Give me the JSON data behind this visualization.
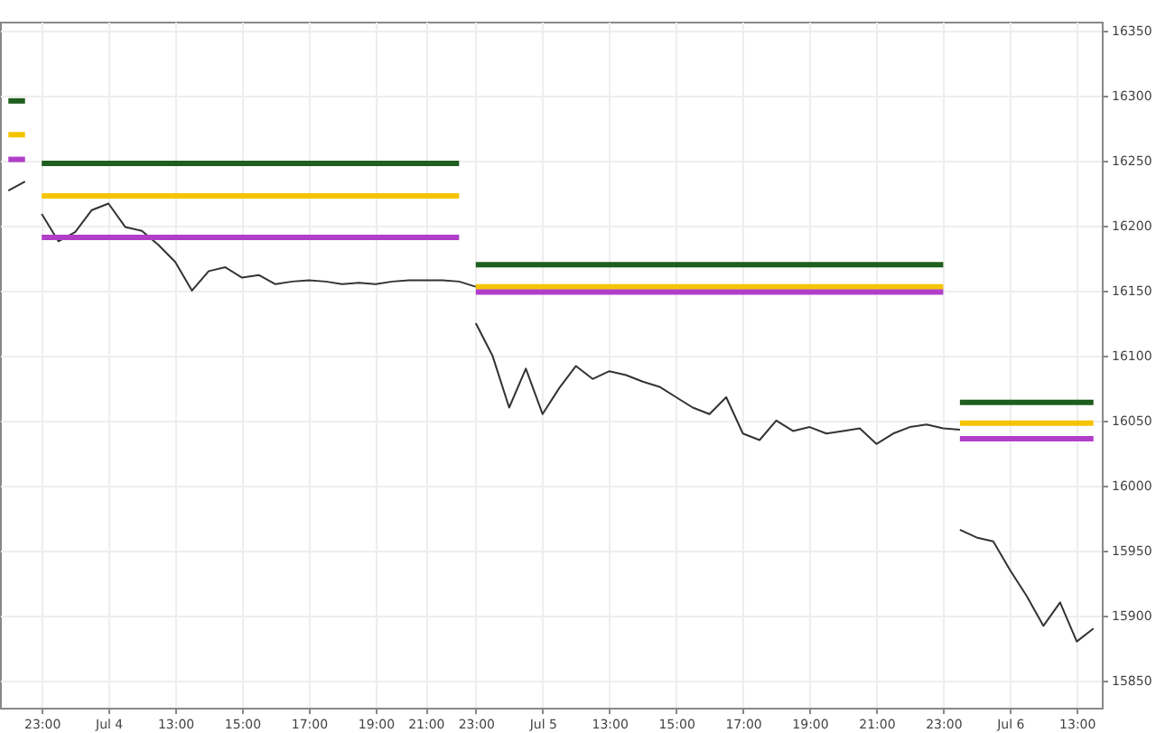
{
  "chart_data": {
    "type": "line",
    "grid": true,
    "marker": "none",
    "line_style": "solid",
    "categories": [
      null,
      null,
      "23:00",
      null,
      null,
      null,
      "Jul 4",
      null,
      null,
      null,
      "13:00",
      null,
      null,
      null,
      "15:00",
      null,
      null,
      null,
      "17:00",
      null,
      null,
      null,
      "19:00",
      null,
      null,
      "21:00",
      null,
      null,
      "23:00",
      null,
      null,
      null,
      "Jul 5",
      null,
      null,
      null,
      "13:00",
      null,
      null,
      null,
      "15:00",
      null,
      null,
      null,
      "17:00",
      null,
      null,
      null,
      "19:00",
      null,
      null,
      null,
      "21:00",
      null,
      null,
      null,
      "23:00",
      null,
      null,
      null,
      "Jul 6",
      null,
      null,
      null,
      "13:00",
      null
    ],
    "ylim": [
      15829,
      16357
    ],
    "yticks": [
      15850,
      15900,
      15950,
      16000,
      16050,
      16100,
      16150,
      16200,
      16250,
      16300,
      16350
    ],
    "series": [
      {
        "color": "#333333",
        "values": [
          16227,
          16234,
          null,
          null,
          null,
          null,
          null,
          null,
          null,
          null,
          null,
          null,
          null,
          null,
          null,
          null,
          null,
          null,
          null,
          null,
          null,
          null,
          null,
          null,
          null,
          null,
          null,
          null,
          null,
          null,
          null,
          null,
          null,
          null,
          null,
          null,
          null,
          null,
          null,
          null,
          null,
          null,
          null,
          null,
          null,
          null,
          null,
          null,
          null,
          null,
          null,
          null,
          null,
          null,
          null,
          null,
          null,
          null,
          null,
          null,
          null,
          null,
          null,
          null,
          null,
          null
        ]
      },
      {
        "color": "#333333",
        "values": [
          null,
          null,
          16209,
          16188,
          16195,
          16212,
          16217,
          16199,
          16196,
          16185,
          16172,
          16150,
          16165,
          16168,
          16160,
          16162,
          16155,
          16157,
          16158,
          16157,
          16155,
          16156,
          16155,
          16157,
          16158,
          16158,
          16158,
          16157,
          16153,
          null,
          null,
          null,
          null,
          null,
          null,
          null,
          null,
          null,
          null,
          null,
          null,
          null,
          null,
          null,
          null,
          null,
          null,
          null,
          null,
          null,
          null,
          null,
          null,
          null,
          null,
          null,
          null,
          null,
          null,
          null,
          null,
          null,
          null,
          null,
          null,
          null
        ]
      },
      {
        "color": "#333333",
        "values": [
          null,
          null,
          null,
          null,
          null,
          null,
          null,
          null,
          null,
          null,
          null,
          null,
          null,
          null,
          null,
          null,
          null,
          null,
          null,
          null,
          null,
          null,
          null,
          null,
          null,
          null,
          null,
          null,
          16125,
          16100,
          16060,
          16090,
          16055,
          16075,
          16092,
          16082,
          16088,
          16085,
          16080,
          16076,
          16068,
          16060,
          16055,
          16068,
          16040,
          16035,
          16050,
          16042,
          16045,
          16040,
          16042,
          16044,
          16032,
          16040,
          16045,
          16047,
          16044,
          16043,
          null,
          null,
          null,
          null,
          null,
          null,
          null,
          null
        ]
      },
      {
        "color": "#333333",
        "values": [
          null,
          null,
          null,
          null,
          null,
          null,
          null,
          null,
          null,
          null,
          null,
          null,
          null,
          null,
          null,
          null,
          null,
          null,
          null,
          null,
          null,
          null,
          null,
          null,
          null,
          null,
          null,
          null,
          null,
          null,
          null,
          null,
          null,
          null,
          null,
          null,
          null,
          null,
          null,
          null,
          null,
          null,
          null,
          null,
          null,
          null,
          null,
          null,
          null,
          null,
          null,
          null,
          null,
          null,
          null,
          null,
          null,
          15966,
          15960,
          15957,
          15935,
          15915,
          15892,
          15910,
          15880,
          15890
        ]
      },
      {
        "color": "#1e5e1e",
        "values": [
          16296,
          16296,
          null,
          null,
          null,
          null,
          null,
          null,
          null,
          null,
          null,
          null,
          null,
          null,
          null,
          null,
          null,
          null,
          null,
          null,
          null,
          null,
          null,
          null,
          null,
          null,
          null,
          null,
          null,
          null,
          null,
          null,
          null,
          null,
          null,
          null,
          null,
          null,
          null,
          null,
          null,
          null,
          null,
          null,
          null,
          null,
          null,
          null,
          null,
          null,
          null,
          null,
          null,
          null,
          null,
          null,
          null,
          null,
          null,
          null,
          null,
          null,
          null,
          null,
          null,
          null
        ]
      },
      {
        "color": "#f5c400",
        "values": [
          16270,
          16270,
          null,
          null,
          null,
          null,
          null,
          null,
          null,
          null,
          null,
          null,
          null,
          null,
          null,
          null,
          null,
          null,
          null,
          null,
          null,
          null,
          null,
          null,
          null,
          null,
          null,
          null,
          null,
          null,
          null,
          null,
          null,
          null,
          null,
          null,
          null,
          null,
          null,
          null,
          null,
          null,
          null,
          null,
          null,
          null,
          null,
          null,
          null,
          null,
          null,
          null,
          null,
          null,
          null,
          null,
          null,
          null,
          null,
          null,
          null,
          null,
          null,
          null,
          null,
          null
        ]
      },
      {
        "color": "#b13ec8",
        "values": [
          16251,
          16251,
          null,
          null,
          null,
          null,
          null,
          null,
          null,
          null,
          null,
          null,
          null,
          null,
          null,
          null,
          null,
          null,
          null,
          null,
          null,
          null,
          null,
          null,
          null,
          null,
          null,
          null,
          null,
          null,
          null,
          null,
          null,
          null,
          null,
          null,
          null,
          null,
          null,
          null,
          null,
          null,
          null,
          null,
          null,
          null,
          null,
          null,
          null,
          null,
          null,
          null,
          null,
          null,
          null,
          null,
          null,
          null,
          null,
          null,
          null,
          null,
          null,
          null,
          null,
          null
        ]
      },
      {
        "color": "#1e5e1e",
        "values": [
          null,
          null,
          16248,
          16248,
          16248,
          16248,
          16248,
          16248,
          16248,
          16248,
          16248,
          16248,
          16248,
          16248,
          16248,
          16248,
          16248,
          16248,
          16248,
          16248,
          16248,
          16248,
          16248,
          16248,
          16248,
          16248,
          16248,
          16248,
          null,
          null,
          null,
          null,
          null,
          null,
          null,
          null,
          null,
          null,
          null,
          null,
          null,
          null,
          null,
          null,
          null,
          null,
          null,
          null,
          null,
          null,
          null,
          null,
          null,
          null,
          null,
          null,
          null,
          null,
          null,
          null,
          null,
          null,
          null,
          null,
          null,
          null
        ]
      },
      {
        "color": "#f5c400",
        "values": [
          null,
          null,
          16223,
          16223,
          16223,
          16223,
          16223,
          16223,
          16223,
          16223,
          16223,
          16223,
          16223,
          16223,
          16223,
          16223,
          16223,
          16223,
          16223,
          16223,
          16223,
          16223,
          16223,
          16223,
          16223,
          16223,
          16223,
          16223,
          null,
          null,
          null,
          null,
          null,
          null,
          null,
          null,
          null,
          null,
          null,
          null,
          null,
          null,
          null,
          null,
          null,
          null,
          null,
          null,
          null,
          null,
          null,
          null,
          null,
          null,
          null,
          null,
          null,
          null,
          null,
          null,
          null,
          null,
          null,
          null,
          null,
          null
        ]
      },
      {
        "color": "#b13ec8",
        "values": [
          null,
          null,
          16191,
          16191,
          16191,
          16191,
          16191,
          16191,
          16191,
          16191,
          16191,
          16191,
          16191,
          16191,
          16191,
          16191,
          16191,
          16191,
          16191,
          16191,
          16191,
          16191,
          16191,
          16191,
          16191,
          16191,
          16191,
          16191,
          null,
          null,
          null,
          null,
          null,
          null,
          null,
          null,
          null,
          null,
          null,
          null,
          null,
          null,
          null,
          null,
          null,
          null,
          null,
          null,
          null,
          null,
          null,
          null,
          null,
          null,
          null,
          null,
          null,
          null,
          null,
          null,
          null,
          null,
          null,
          null,
          null,
          null
        ]
      },
      {
        "color": "#1e5e1e",
        "values": [
          null,
          null,
          null,
          null,
          null,
          null,
          null,
          null,
          null,
          null,
          null,
          null,
          null,
          null,
          null,
          null,
          null,
          null,
          null,
          null,
          null,
          null,
          null,
          null,
          null,
          null,
          null,
          null,
          16170,
          16170,
          16170,
          16170,
          16170,
          16170,
          16170,
          16170,
          16170,
          16170,
          16170,
          16170,
          16170,
          16170,
          16170,
          16170,
          16170,
          16170,
          16170,
          16170,
          16170,
          16170,
          16170,
          16170,
          16170,
          16170,
          16170,
          16170,
          16170,
          null,
          null,
          null,
          null,
          null,
          null,
          null,
          null,
          null
        ]
      },
      {
        "color": "#f5c400",
        "values": [
          null,
          null,
          null,
          null,
          null,
          null,
          null,
          null,
          null,
          null,
          null,
          null,
          null,
          null,
          null,
          null,
          null,
          null,
          null,
          null,
          null,
          null,
          null,
          null,
          null,
          null,
          null,
          null,
          16153,
          16153,
          16153,
          16153,
          16153,
          16153,
          16153,
          16153,
          16153,
          16153,
          16153,
          16153,
          16153,
          16153,
          16153,
          16153,
          16153,
          16153,
          16153,
          16153,
          16153,
          16153,
          16153,
          16153,
          16153,
          16153,
          16153,
          16153,
          16153,
          null,
          null,
          null,
          null,
          null,
          null,
          null,
          null,
          null
        ]
      },
      {
        "color": "#b13ec8",
        "values": [
          null,
          null,
          null,
          null,
          null,
          null,
          null,
          null,
          null,
          null,
          null,
          null,
          null,
          null,
          null,
          null,
          null,
          null,
          null,
          null,
          null,
          null,
          null,
          null,
          null,
          null,
          null,
          null,
          16149,
          16149,
          16149,
          16149,
          16149,
          16149,
          16149,
          16149,
          16149,
          16149,
          16149,
          16149,
          16149,
          16149,
          16149,
          16149,
          16149,
          16149,
          16149,
          16149,
          16149,
          16149,
          16149,
          16149,
          16149,
          16149,
          16149,
          16149,
          16149,
          null,
          null,
          null,
          null,
          null,
          null,
          null,
          null,
          null
        ]
      },
      {
        "color": "#1e5e1e",
        "values": [
          null,
          null,
          null,
          null,
          null,
          null,
          null,
          null,
          null,
          null,
          null,
          null,
          null,
          null,
          null,
          null,
          null,
          null,
          null,
          null,
          null,
          null,
          null,
          null,
          null,
          null,
          null,
          null,
          null,
          null,
          null,
          null,
          null,
          null,
          null,
          null,
          null,
          null,
          null,
          null,
          null,
          null,
          null,
          null,
          null,
          null,
          null,
          null,
          null,
          null,
          null,
          null,
          null,
          null,
          null,
          null,
          null,
          16064,
          16064,
          16064,
          16064,
          16064,
          16064,
          16064,
          16064,
          16064
        ]
      },
      {
        "color": "#f5c400",
        "values": [
          null,
          null,
          null,
          null,
          null,
          null,
          null,
          null,
          null,
          null,
          null,
          null,
          null,
          null,
          null,
          null,
          null,
          null,
          null,
          null,
          null,
          null,
          null,
          null,
          null,
          null,
          null,
          null,
          null,
          null,
          null,
          null,
          null,
          null,
          null,
          null,
          null,
          null,
          null,
          null,
          null,
          null,
          null,
          null,
          null,
          null,
          null,
          null,
          null,
          null,
          null,
          null,
          null,
          null,
          null,
          null,
          null,
          16048,
          16048,
          16048,
          16048,
          16048,
          16048,
          16048,
          16048,
          16048
        ]
      },
      {
        "color": "#b13ec8",
        "values": [
          null,
          null,
          null,
          null,
          null,
          null,
          null,
          null,
          null,
          null,
          null,
          null,
          null,
          null,
          null,
          null,
          null,
          null,
          null,
          null,
          null,
          null,
          null,
          null,
          null,
          null,
          null,
          null,
          null,
          null,
          null,
          null,
          null,
          null,
          null,
          null,
          null,
          null,
          null,
          null,
          null,
          null,
          null,
          null,
          null,
          null,
          null,
          null,
          null,
          null,
          null,
          null,
          null,
          null,
          null,
          null,
          null,
          16036,
          16036,
          16036,
          16036,
          16036,
          16036,
          16036,
          16036,
          16036
        ]
      }
    ]
  }
}
